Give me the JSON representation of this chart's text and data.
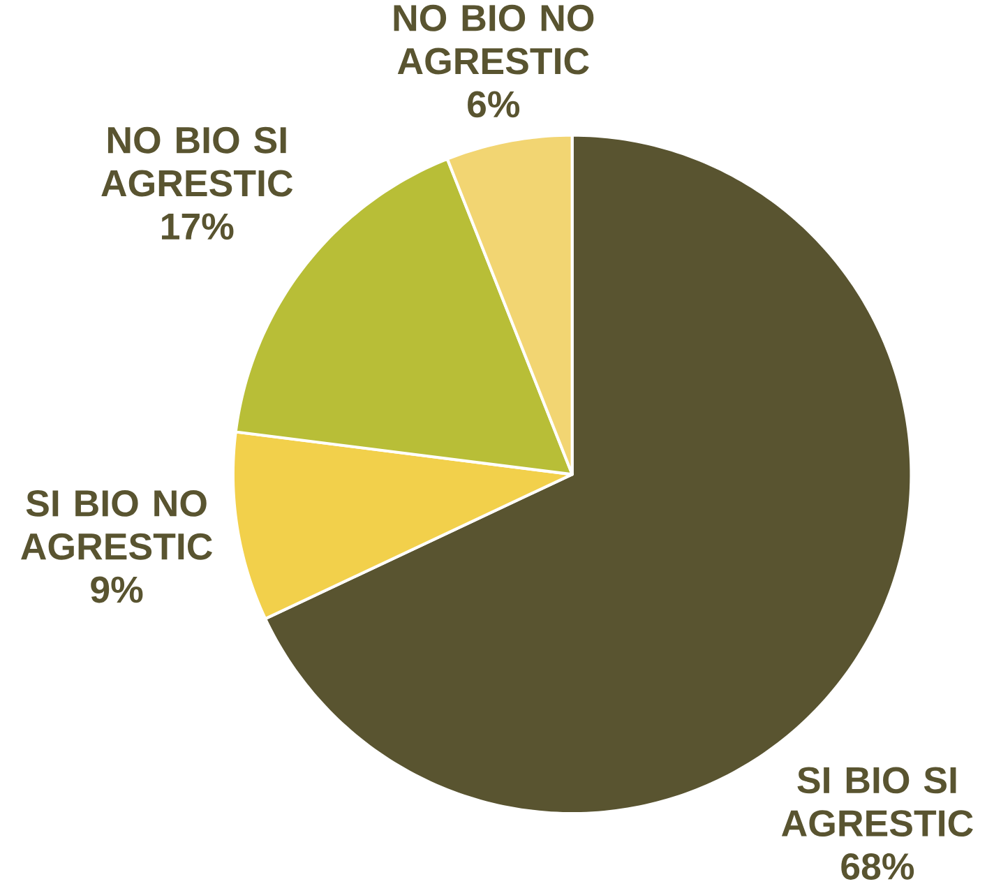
{
  "chart_data": {
    "type": "pie",
    "categories": [
      "SI BIO SI AGRESTIC",
      "SI BIO NO AGRESTIC",
      "NO BIO SI AGRESTIC",
      "NO BIO NO AGRESTIC"
    ],
    "values": [
      68,
      9,
      17,
      6
    ],
    "value_labels": [
      "68%",
      "9%",
      "17%",
      "6%"
    ],
    "colors": [
      "#595430",
      "#f2d04b",
      "#b8be37",
      "#f2d572"
    ],
    "legend": false
  }
}
